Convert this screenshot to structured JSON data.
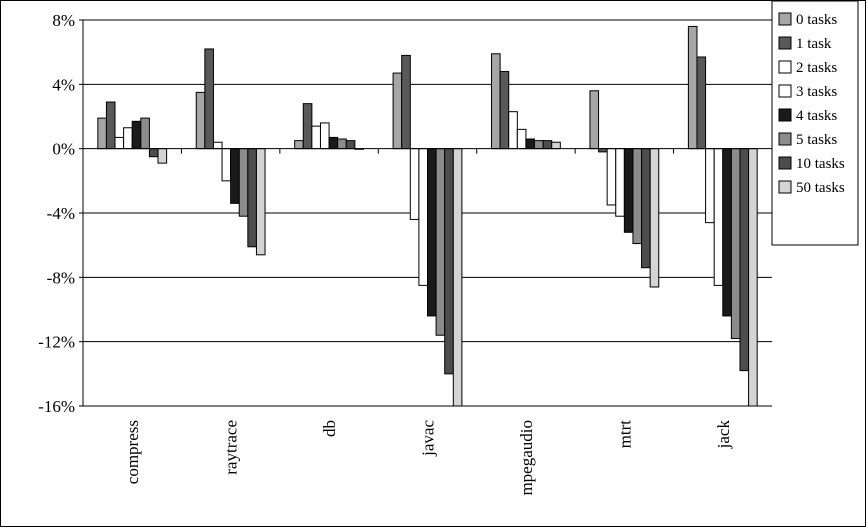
{
  "chart_data": {
    "type": "bar",
    "categories": [
      "compress",
      "raytrace",
      "db",
      "javac",
      "mpegaudio",
      "mtrt",
      "jack"
    ],
    "ylim": [
      -16,
      8
    ],
    "yticks": [
      8,
      4,
      0,
      -4,
      -8,
      -12,
      -16
    ],
    "ytick_labels": [
      "8%",
      "4%",
      "0%",
      "-4%",
      "-8%",
      "-12%",
      "-16%"
    ],
    "grid": true,
    "legend": "right",
    "series": [
      {
        "name": "0 tasks",
        "color": "#a6a6a6",
        "values": [
          1.9,
          3.5,
          0.5,
          4.7,
          5.9,
          3.6,
          7.6
        ]
      },
      {
        "name": "1 task",
        "color": "#595959",
        "values": [
          2.9,
          6.2,
          2.8,
          5.8,
          4.8,
          -0.2,
          5.7
        ]
      },
      {
        "name": "2 tasks",
        "color": "#ffffff",
        "values": [
          0.7,
          0.4,
          1.4,
          -4.4,
          2.3,
          -3.5,
          -4.6
        ]
      },
      {
        "name": "3 tasks",
        "color": "#ffffff",
        "values": [
          1.3,
          -2.0,
          1.6,
          -8.5,
          1.2,
          -4.2,
          -8.5
        ]
      },
      {
        "name": "4 tasks",
        "color": "#1a1a1a",
        "values": [
          1.7,
          -3.4,
          0.7,
          -10.4,
          0.6,
          -5.2,
          -10.4
        ]
      },
      {
        "name": "5 tasks",
        "color": "#8c8c8c",
        "values": [
          1.9,
          -4.2,
          0.6,
          -11.6,
          0.5,
          -5.9,
          -11.8
        ]
      },
      {
        "name": "10 tasks",
        "color": "#4d4d4d",
        "values": [
          -0.5,
          -6.1,
          0.5,
          -14.0,
          0.5,
          -7.4,
          -13.8
        ]
      },
      {
        "name": "50 tasks",
        "color": "#d4d4d4",
        "values": [
          -0.9,
          -6.6,
          0.0,
          -16.0,
          0.4,
          -8.6,
          -16.0
        ]
      }
    ]
  }
}
